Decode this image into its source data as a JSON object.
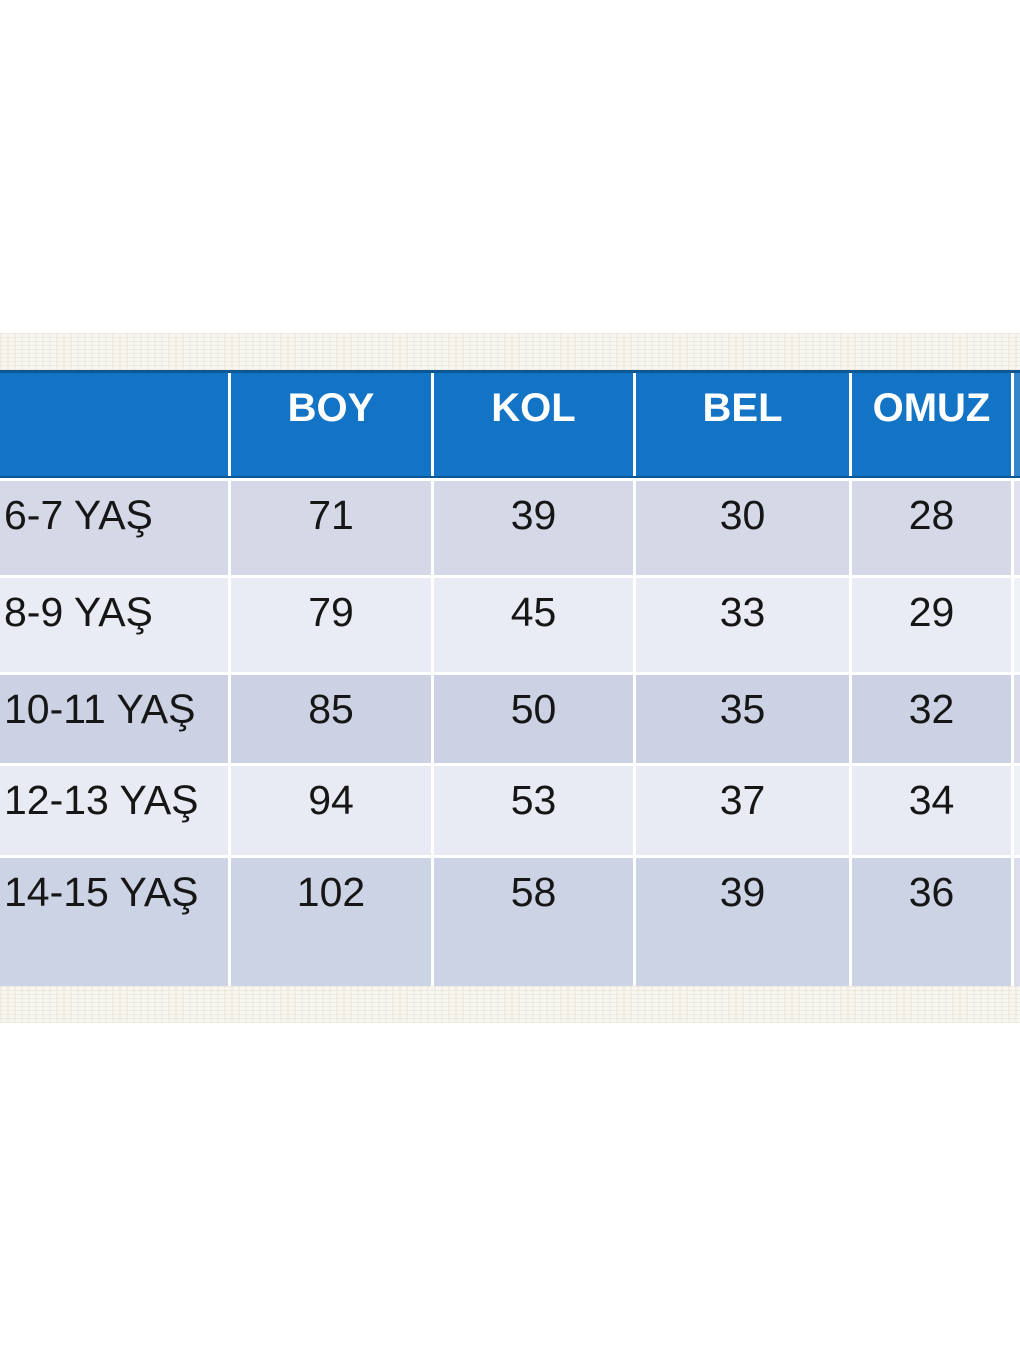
{
  "size_chart": {
    "columns": [
      "BOY",
      "KOL",
      "BEL",
      "OMUZ"
    ],
    "rows": [
      {
        "label": "6-7 YAŞ",
        "values": [
          "71",
          "39",
          "30",
          "28"
        ]
      },
      {
        "label": "8-9 YAŞ",
        "values": [
          "79",
          "45",
          "33",
          "29"
        ]
      },
      {
        "label": "10-11 YAŞ",
        "values": [
          "85",
          "50",
          "35",
          "32"
        ]
      },
      {
        "label": "12-13 YAŞ",
        "values": [
          "94",
          "53",
          "37",
          "34"
        ]
      },
      {
        "label": "14-15 YAŞ",
        "values": [
          "102",
          "58",
          "39",
          "36"
        ]
      }
    ],
    "colors": {
      "header_bg": "#1373c5",
      "header_text": "#ffffff",
      "header_border_dark": "#0b5694",
      "row_odd_bg": "#d1d6e5",
      "row_even_bg": "#eaecf5",
      "cell_text": "#161616",
      "texture_bg": "#f8f6f0"
    }
  }
}
